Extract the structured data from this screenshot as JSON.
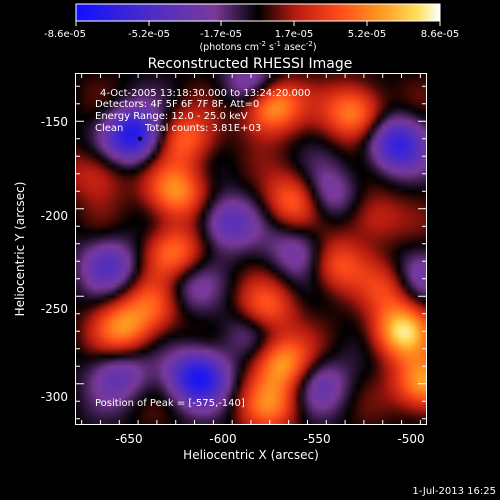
{
  "colorbar": {
    "tick_labels": [
      "-8.6e-05",
      "-5.2e-05",
      "-1.7e-05",
      "1.7e-05",
      "5.2e-05",
      "8.6e-05"
    ],
    "units_prefix": "(photons cm",
    "units_exp1": "-2",
    "units_mid": " s",
    "units_exp2": "-1",
    "units_suffix": " asec",
    "units_exp3": "-2",
    "units_close": ")"
  },
  "overlay": {
    "line1": "4-Oct-2005 13:18:30.000 to 13:24:20.000",
    "line2": "Detectors: 4F 5F 6F 7F 8F, Att=0",
    "line3": "Energy Range: 12.0 - 25.0 keV",
    "line4_a": "Clean",
    "line4_b": "Total counts: 3.81E+03",
    "peak": "Position of Peak = [-575,-140]"
  },
  "timestamp": "1-Jul-2013 16:25",
  "colors": {
    "background": "#000000",
    "colormap": [
      "#1010ff",
      "#4a2cc8",
      "#7a3a9a",
      "#000000",
      "#b31a10",
      "#ff4a1a",
      "#ff9a20",
      "#ffe060",
      "#ffffff"
    ]
  },
  "chart_data": {
    "type": "heatmap",
    "title": "Reconstructed RHESSI Image",
    "xlabel": "Heliocentric X (arcsec)",
    "ylabel": "Heliocentric Y (arcsec)",
    "xlim": [
      -678,
      -492
    ],
    "ylim": [
      -323,
      -123
    ],
    "x_ticks": [
      -650,
      -600,
      -550,
      -500
    ],
    "y_ticks": [
      -150,
      -200,
      -250,
      -300
    ],
    "colorbar_range": [
      -8.6e-05,
      8.6e-05
    ],
    "peak_position": [
      -575,
      -140
    ],
    "blobs": [
      {
        "x": -648,
        "y": -158,
        "v": -0.95
      },
      {
        "x": -613,
        "y": -296,
        "v": -0.95
      },
      {
        "x": -508,
        "y": -163,
        "v": -0.8
      },
      {
        "x": -583,
        "y": -130,
        "v": -0.6
      },
      {
        "x": -660,
        "y": -232,
        "v": -0.5
      },
      {
        "x": -598,
        "y": -208,
        "v": -0.55
      },
      {
        "x": -545,
        "y": -192,
        "v": -0.45
      },
      {
        "x": -560,
        "y": -225,
        "v": -0.4
      },
      {
        "x": -655,
        "y": -295,
        "v": -0.45
      },
      {
        "x": -498,
        "y": -240,
        "v": -0.4
      },
      {
        "x": -548,
        "y": -300,
        "v": -0.4
      },
      {
        "x": -585,
        "y": -268,
        "v": -0.35
      },
      {
        "x": -618,
        "y": -245,
        "v": -0.3
      },
      {
        "x": -575,
        "y": -140,
        "v": 1.0
      },
      {
        "x": -530,
        "y": -145,
        "v": 0.7
      },
      {
        "x": -505,
        "y": -270,
        "v": 0.9
      },
      {
        "x": -493,
        "y": -300,
        "v": 0.8
      },
      {
        "x": -568,
        "y": -288,
        "v": 0.75
      },
      {
        "x": -578,
        "y": -258,
        "v": 0.6
      },
      {
        "x": -625,
        "y": -190,
        "v": 0.7
      },
      {
        "x": -626,
        "y": -225,
        "v": 0.6
      },
      {
        "x": -620,
        "y": -160,
        "v": 0.55
      },
      {
        "x": -653,
        "y": -268,
        "v": 0.65
      },
      {
        "x": -637,
        "y": -255,
        "v": 0.45
      },
      {
        "x": -562,
        "y": -195,
        "v": 0.6
      },
      {
        "x": -540,
        "y": -232,
        "v": 0.5
      },
      {
        "x": -575,
        "y": -312,
        "v": 0.55
      },
      {
        "x": -667,
        "y": -180,
        "v": 0.35
      },
      {
        "x": -520,
        "y": -205,
        "v": 0.35
      },
      {
        "x": -510,
        "y": -245,
        "v": 0.45
      }
    ]
  }
}
